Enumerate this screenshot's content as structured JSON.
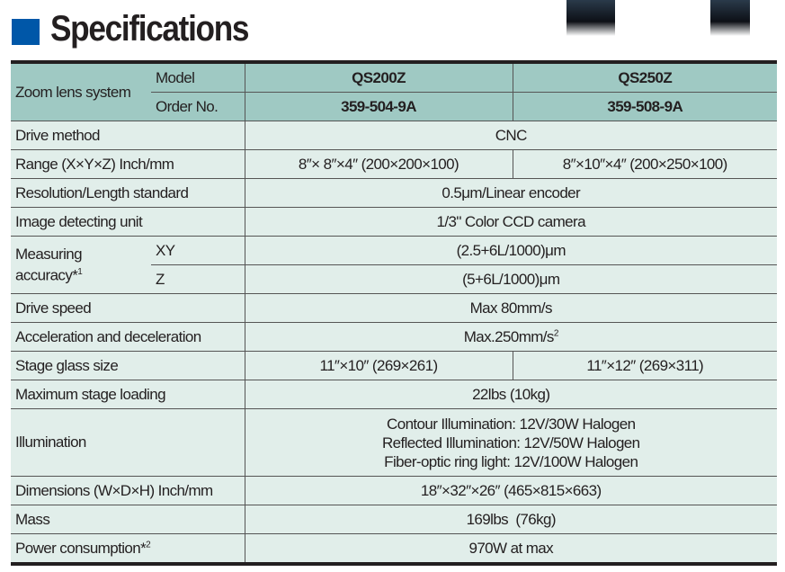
{
  "title": "Specifications",
  "colors": {
    "title_square": "#0057a8",
    "header_bg": "#9fc9c3",
    "body_bg": "#e1eeea"
  },
  "header": {
    "group_label": "Zoom lens system",
    "model_label": "Model",
    "order_label": "Order No.",
    "models": [
      "QS200Z",
      "QS250Z"
    ],
    "order_numbers": [
      "359-504-9A",
      "359-508-9A"
    ]
  },
  "rows": {
    "drive_method": {
      "label": "Drive method",
      "value": "CNC"
    },
    "range": {
      "label": "Range (X×Y×Z) Inch/mm",
      "values": [
        "8″× 8″×4″ (200×200×100)",
        "8″×10″×4″ (200×250×100)"
      ]
    },
    "resolution": {
      "label": "Resolution/Length standard",
      "value": "0.5μm/Linear encoder"
    },
    "image_unit": {
      "label": "Image detecting unit",
      "value": "1/3\" Color CCD camera"
    },
    "accuracy": {
      "label": "Measuring accuracy*",
      "footnote": "1",
      "xy_label": "XY",
      "xy_value": "(2.5+6L/1000)μm",
      "z_label": "Z",
      "z_value": "(5+6L/1000)μm"
    },
    "drive_speed": {
      "label": "Drive speed",
      "value": "Max 80mm/s"
    },
    "acceleration": {
      "label": "Acceleration and deceleration",
      "value": "Max.250mm/s",
      "sup": "2"
    },
    "stage_glass": {
      "label": "Stage glass size",
      "values": [
        "11″×10″ (269×261)",
        "11″×12″ (269×311)"
      ]
    },
    "max_loading": {
      "label": "Maximum stage loading",
      "value": "22lbs (10kg)"
    },
    "illumination": {
      "label": "Illumination",
      "lines": [
        "Contour Illumination: 12V/30W Halogen",
        "Reflected Illumination: 12V/50W Halogen",
        "Fiber-optic ring light: 12V/100W Halogen"
      ]
    },
    "dimensions": {
      "label": "Dimensions (W×D×H) Inch/mm",
      "value": "18″×32″×26″ (465×815×663)"
    },
    "mass": {
      "label": "Mass",
      "value": "169lbs  (76kg)"
    },
    "power": {
      "label": "Power consumption*",
      "footnote": "2",
      "value": "970W at max"
    }
  }
}
